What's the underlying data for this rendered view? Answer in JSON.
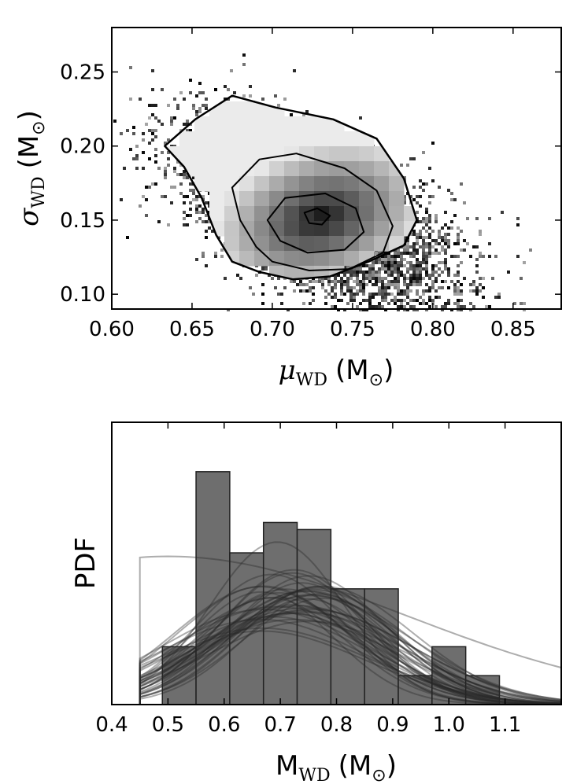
{
  "chart_data": [
    {
      "type": "heatmap",
      "title": "",
      "xlabel": {
        "symbol": "μ",
        "subscript": "WD",
        "unit": "M",
        "unit_subscript": "⊙"
      },
      "ylabel": {
        "symbol": "σ",
        "subscript": "WD",
        "unit": "M",
        "unit_subscript": "⊙"
      },
      "xlim": [
        0.6,
        0.88
      ],
      "ylim": [
        0.09,
        0.28
      ],
      "xticks": [
        "0.60",
        "0.65",
        "0.70",
        "0.75",
        "0.80",
        "0.85"
      ],
      "yticks": [
        "0.10",
        "0.15",
        "0.20",
        "0.25"
      ],
      "density_peak": {
        "mu": 0.73,
        "sigma": 0.152
      },
      "contours": [
        {
          "level": "outer",
          "points": [
            [
              0.633,
              0.2
            ],
            [
              0.652,
              0.218
            ],
            [
              0.675,
              0.234
            ],
            [
              0.702,
              0.226
            ],
            [
              0.738,
              0.218
            ],
            [
              0.765,
              0.205
            ],
            [
              0.782,
              0.178
            ],
            [
              0.79,
              0.15
            ],
            [
              0.782,
              0.133
            ],
            [
              0.76,
              0.122
            ],
            [
              0.736,
              0.112
            ],
            [
              0.713,
              0.11
            ],
            [
              0.692,
              0.115
            ],
            [
              0.675,
              0.122
            ],
            [
              0.665,
              0.14
            ],
            [
              0.656,
              0.165
            ],
            [
              0.645,
              0.186
            ],
            [
              0.633,
              0.2
            ]
          ]
        },
        {
          "level": "middle",
          "points": [
            [
              0.675,
              0.172
            ],
            [
              0.692,
              0.191
            ],
            [
              0.715,
              0.195
            ],
            [
              0.745,
              0.185
            ],
            [
              0.765,
              0.17
            ],
            [
              0.775,
              0.146
            ],
            [
              0.769,
              0.128
            ],
            [
              0.748,
              0.117
            ],
            [
              0.723,
              0.116
            ],
            [
              0.7,
              0.122
            ],
            [
              0.69,
              0.132
            ],
            [
              0.68,
              0.15
            ],
            [
              0.675,
              0.172
            ]
          ]
        },
        {
          "level": "inner",
          "points": [
            [
              0.697,
              0.15
            ],
            [
              0.708,
              0.165
            ],
            [
              0.733,
              0.168
            ],
            [
              0.752,
              0.158
            ],
            [
              0.757,
              0.142
            ],
            [
              0.745,
              0.13
            ],
            [
              0.722,
              0.128
            ],
            [
              0.705,
              0.136
            ],
            [
              0.697,
              0.15
            ]
          ]
        },
        {
          "level": "peak",
          "points": [
            [
              0.72,
              0.155
            ],
            [
              0.728,
              0.158
            ],
            [
              0.736,
              0.153
            ],
            [
              0.731,
              0.147
            ],
            [
              0.723,
              0.148
            ],
            [
              0.72,
              0.155
            ]
          ]
        }
      ]
    },
    {
      "type": "bar",
      "title": "",
      "xlabel": {
        "symbol": "M",
        "subscript": "WD",
        "unit": "M",
        "unit_subscript": "⊙"
      },
      "ylabel": "PDF",
      "xlim": [
        0.4,
        1.2
      ],
      "ylim": [
        0,
        4.0
      ],
      "xticks": [
        "0.4",
        "0.5",
        "0.6",
        "0.7",
        "0.8",
        "0.9",
        "1.0",
        "1.1"
      ],
      "bins": [
        {
          "start": 0.49,
          "end": 0.55,
          "value": 0.82
        },
        {
          "start": 0.55,
          "end": 0.61,
          "value": 3.3
        },
        {
          "start": 0.61,
          "end": 0.67,
          "value": 2.15
        },
        {
          "start": 0.67,
          "end": 0.73,
          "value": 2.58
        },
        {
          "start": 0.73,
          "end": 0.79,
          "value": 2.48
        },
        {
          "start": 0.79,
          "end": 0.85,
          "value": 1.64
        },
        {
          "start": 0.85,
          "end": 0.91,
          "value": 1.64
        },
        {
          "start": 0.91,
          "end": 0.97,
          "value": 0.41
        },
        {
          "start": 0.97,
          "end": 1.03,
          "value": 0.82
        },
        {
          "start": 1.03,
          "end": 1.09,
          "value": 0.41
        }
      ],
      "curve_cutoff": 0.45,
      "curve_count": 40,
      "curve_mean_range": [
        0.66,
        0.78
      ],
      "curve_sigma_range": [
        0.12,
        0.19
      ],
      "curve_amplitude_range": [
        2.3,
        3.4
      ]
    }
  ]
}
